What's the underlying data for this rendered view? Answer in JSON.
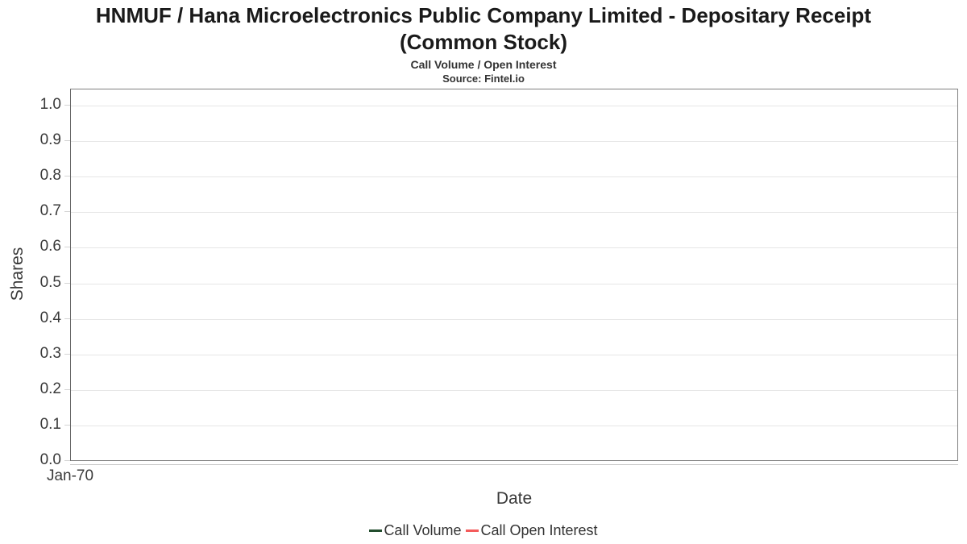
{
  "header": {
    "title_lines": [
      "HNMUF / Hana Microelectronics Public Company Limited - Depositary Receipt",
      "(Common Stock)"
    ],
    "subtitle": "Call Volume / Open Interest",
    "source": "Source: Fintel.io"
  },
  "chart_data": {
    "type": "line",
    "title": "HNMUF / Hana Microelectronics Public Company Limited - Depositary Receipt (Common Stock)",
    "subtitle": "Call Volume / Open Interest",
    "source": "Source: Fintel.io",
    "xlabel": "Date",
    "ylabel": "Shares",
    "x_tick_labels": [
      "Jan-70"
    ],
    "y_ticks": [
      "0.0",
      "0.1",
      "0.2",
      "0.3",
      "0.4",
      "0.5",
      "0.6",
      "0.7",
      "0.8",
      "0.9",
      "1.0"
    ],
    "ylim": [
      0,
      1.05
    ],
    "grid": true,
    "legend_position": "bottom",
    "series": [
      {
        "name": "Call Volume",
        "color": "#234d2e",
        "values": []
      },
      {
        "name": "Call Open Interest",
        "color": "#f45b5b",
        "values": []
      }
    ],
    "colors": {
      "gridline": "#e6e6e6",
      "plot_border": "#808080",
      "axis_line": "#c9c9c9",
      "text": "#3a3a3a"
    }
  }
}
